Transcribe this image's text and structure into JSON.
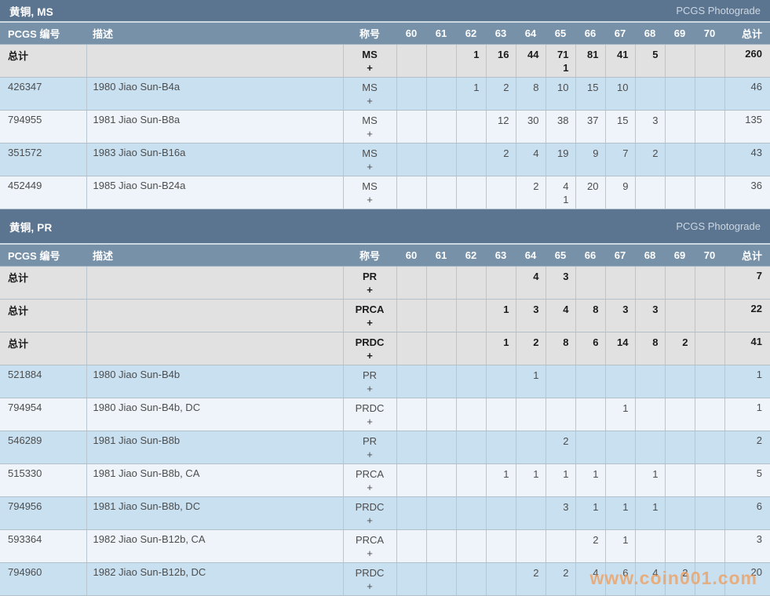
{
  "watermark": "www.coin001.com",
  "header": {
    "pcgs_col": "PCGS 编号",
    "desc_col": "描述",
    "desig_col": "称号",
    "grade_cols": [
      "60",
      "61",
      "62",
      "63",
      "64",
      "65",
      "66",
      "67",
      "68",
      "69",
      "70"
    ],
    "total_col": "总计"
  },
  "total_label": "总计",
  "sections": [
    {
      "title": "黄铜, MS",
      "photograde_link": "PCGS Photograde",
      "rows": [
        {
          "kind": "total",
          "id": "总计",
          "desc": "",
          "desig": [
            "MS",
            "+"
          ],
          "grades": [
            "",
            "",
            "1",
            "16",
            "44",
            [
              "71",
              "1"
            ],
            "81",
            "41",
            "5",
            "",
            ""
          ],
          "total": "260"
        },
        {
          "kind": "link",
          "id": "426347",
          "desc": "1980 Jiao Sun-B4a",
          "desig": [
            "MS",
            "+"
          ],
          "grades": [
            "",
            "",
            "1",
            "2",
            "8",
            "10",
            "15",
            "10",
            "",
            "",
            ""
          ],
          "total": "46"
        },
        {
          "kind": "link",
          "id": "794955",
          "desc": "1981 Jiao Sun-B8a",
          "desig": [
            "MS",
            "+"
          ],
          "grades": [
            "",
            "",
            "",
            "12",
            "30",
            "38",
            "37",
            "15",
            "3",
            "",
            ""
          ],
          "total": "135"
        },
        {
          "kind": "link",
          "id": "351572",
          "desc": "1983 Jiao Sun-B16a",
          "desig": [
            "MS",
            "+"
          ],
          "grades": [
            "",
            "",
            "",
            "2",
            "4",
            "19",
            "9",
            "7",
            "2",
            "",
            ""
          ],
          "total": "43"
        },
        {
          "kind": "link",
          "id": "452449",
          "desc": "1985 Jiao Sun-B24a",
          "desig": [
            "MS",
            "+"
          ],
          "grades": [
            "",
            "",
            "",
            "",
            "2",
            [
              "4",
              "1"
            ],
            "20",
            "9",
            "",
            "",
            ""
          ],
          "total": "36"
        }
      ]
    },
    {
      "title": "黄铜, PR",
      "photograde_link": "PCGS Photograde",
      "rows": [
        {
          "kind": "total",
          "id": "总计",
          "desc": "",
          "desig": [
            "PR",
            "+"
          ],
          "grades": [
            "",
            "",
            "",
            "",
            "4",
            "3",
            "",
            "",
            "",
            "",
            ""
          ],
          "total": "7"
        },
        {
          "kind": "total",
          "id": "总计",
          "desc": "",
          "desig": [
            "PRCA",
            "+"
          ],
          "grades": [
            "",
            "",
            "",
            "1",
            "3",
            "4",
            "8",
            "3",
            "3",
            "",
            ""
          ],
          "total": "22"
        },
        {
          "kind": "total",
          "id": "总计",
          "desc": "",
          "desig": [
            "PRDC",
            "+"
          ],
          "grades": [
            "",
            "",
            "",
            "1",
            "2",
            "8",
            "6",
            "14",
            "8",
            "2",
            ""
          ],
          "total": "41"
        },
        {
          "kind": "link",
          "id": "521884",
          "desc": "1980 Jiao Sun-B4b",
          "desig": [
            "PR",
            "+"
          ],
          "grades": [
            "",
            "",
            "",
            "",
            "1",
            "",
            "",
            "",
            "",
            "",
            ""
          ],
          "total": "1"
        },
        {
          "kind": "link",
          "id": "794954",
          "desc": "1980 Jiao Sun-B4b, DC",
          "desig": [
            "PRDC",
            "+"
          ],
          "grades": [
            "",
            "",
            "",
            "",
            "",
            "",
            "",
            "1",
            "",
            "",
            ""
          ],
          "total": "1"
        },
        {
          "kind": "link",
          "id": "546289",
          "desc": "1981 Jiao Sun-B8b",
          "desig": [
            "PR",
            "+"
          ],
          "grades": [
            "",
            "",
            "",
            "",
            "",
            "2",
            "",
            "",
            "",
            "",
            ""
          ],
          "total": "2"
        },
        {
          "kind": "link",
          "id": "515330",
          "desc": "1981 Jiao Sun-B8b, CA",
          "desig": [
            "PRCA",
            "+"
          ],
          "grades": [
            "",
            "",
            "",
            "1",
            "1",
            "1",
            "1",
            "",
            "1",
            "",
            ""
          ],
          "total": "5"
        },
        {
          "kind": "link",
          "id": "794956",
          "desc": "1981 Jiao Sun-B8b, DC",
          "desig": [
            "PRDC",
            "+"
          ],
          "grades": [
            "",
            "",
            "",
            "",
            "",
            "3",
            "1",
            "1",
            "1",
            "",
            ""
          ],
          "total": "6"
        },
        {
          "kind": "link",
          "id": "593364",
          "desc": "1982 Jiao Sun-B12b, CA",
          "desig": [
            "PRCA",
            "+"
          ],
          "grades": [
            "",
            "",
            "",
            "",
            "",
            "",
            "2",
            "1",
            "",
            "",
            ""
          ],
          "total": "3"
        },
        {
          "kind": "link",
          "id": "794960",
          "desc": "1982 Jiao Sun-B12b, DC",
          "desig": [
            "PRDC",
            "+"
          ],
          "grades": [
            "",
            "",
            "",
            "",
            "2",
            "2",
            "4",
            "6",
            "4",
            "2",
            ""
          ],
          "total": "20"
        }
      ]
    }
  ],
  "colors": {
    "section_bar": "#5b7590",
    "table_header": "#7791a8",
    "total_row": "#e1e1e2",
    "row_blue": "#c9e0f1",
    "row_light": "#eef4f9",
    "link": "#a8683e",
    "watermark": "#f19853"
  }
}
